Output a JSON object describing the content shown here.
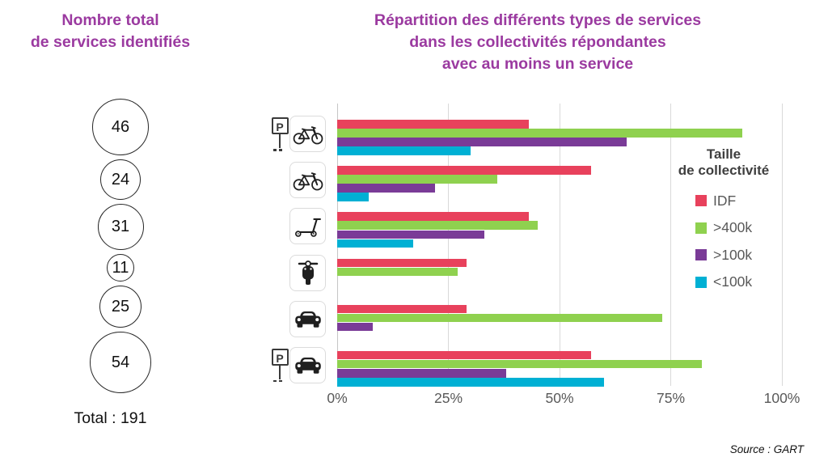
{
  "left_panel": {
    "title_line1": "Nombre total",
    "title_line2": "de services identifiés",
    "circles": [
      {
        "value": 46
      },
      {
        "value": 24
      },
      {
        "value": 31
      },
      {
        "value": 11
      },
      {
        "value": 25
      },
      {
        "value": 54
      }
    ],
    "total_label": "Total : 191"
  },
  "chart": {
    "title_line1": "Répartition des différents types de services",
    "title_line2": "dans les collectivités répondantes",
    "title_line3": "avec au moins un service",
    "legend_title_line1": "Taille",
    "legend_title_line2": "de collectivité",
    "p_sign_letter": "P",
    "source": "Source : GART"
  },
  "chart_data": {
    "type": "bar",
    "orientation": "horizontal",
    "title": "Répartition des différents types de services dans les collectivités répondantes avec au moins un service",
    "categories": [
      "stationnement-velo",
      "velo-libre-service",
      "trottinette",
      "scooter-moto",
      "voiture-partagee",
      "stationnement-voiture"
    ],
    "category_icons": [
      "parking-sign+bicycle",
      "bicycle",
      "kick-scooter",
      "moped",
      "car",
      "parking-sign+car"
    ],
    "series": [
      {
        "name": "IDF",
        "color": "#E8415C",
        "values": [
          43,
          57,
          43,
          29,
          29,
          57
        ]
      },
      {
        "name": ">400k",
        "color": "#8FD14F",
        "values": [
          91,
          36,
          45,
          27,
          73,
          82
        ]
      },
      {
        "name": ">100k",
        "color": "#7A3B97",
        "values": [
          65,
          22,
          33,
          0,
          8,
          38
        ]
      },
      {
        "name": "<100k",
        "color": "#00B0D4",
        "values": [
          30,
          7,
          17,
          0,
          0,
          60
        ]
      }
    ],
    "x_ticks": [
      "0%",
      "25%",
      "50%",
      "75%",
      "100%"
    ],
    "xlim": [
      0,
      100
    ],
    "grid": "vertical",
    "legend_title": "Taille de collectivité",
    "legend_position": "right-inside"
  }
}
